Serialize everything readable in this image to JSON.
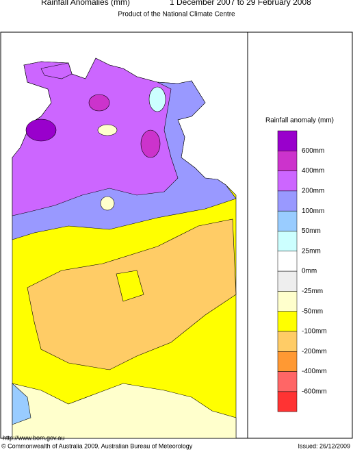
{
  "header": {
    "title": "Rainfall Anomalies (mm)",
    "period": "1 December 2007 to 29 February 2008",
    "subtitle": "Product of the National Climate Centre"
  },
  "legend": {
    "title": "Rainfall anomaly (mm)",
    "labels": [
      "600mm",
      "400mm",
      "200mm",
      "100mm",
      "50mm",
      "25mm",
      "0mm",
      "-25mm",
      "-50mm",
      "-100mm",
      "-200mm",
      "-400mm",
      "-600mm"
    ],
    "colors": [
      "#9900cc",
      "#cc33cc",
      "#cc66ff",
      "#9999ff",
      "#99ccff",
      "#ccffff",
      "#ffffff",
      "#eeeeee",
      "#ffffcc",
      "#ffff00",
      "#ffcc66",
      "#ff9933",
      "#ff6666",
      "#ff3333"
    ]
  },
  "footer": {
    "url": "http://www.bom.gov.au",
    "copyright": "© Commonwealth of Australia 2009, Australian Bureau of Meteorology",
    "issued": "Issued: 26/12/2009"
  }
}
